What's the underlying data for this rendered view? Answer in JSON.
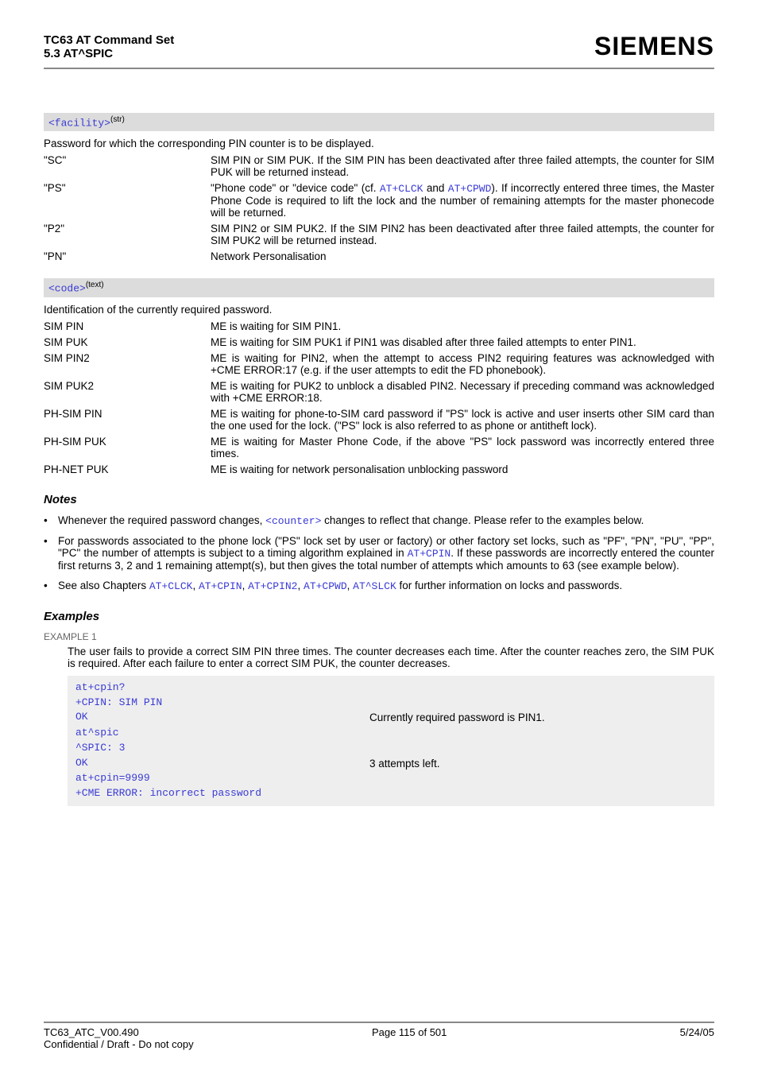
{
  "header": {
    "title": "TC63 AT Command Set",
    "section": "5.3 AT^SPIC",
    "logo": "SIEMENS"
  },
  "facility": {
    "param_name": "<facility>",
    "param_type": "(str)",
    "intro": "Password for which the corresponding PIN counter is to be displayed.",
    "rows": [
      {
        "term": "\"SC\"",
        "desc": "SIM PIN or SIM PUK. If the SIM PIN has been deactivated after three failed attempts, the counter for SIM PUK will be returned instead."
      },
      {
        "term": "\"PS\"",
        "desc_pre": "\"Phone code\" or \"device code\" (cf. ",
        "link1": "AT+CLCK",
        "mid": " and ",
        "link2": "AT+CPWD",
        "desc_post": "). If incorrectly entered three times, the Master Phone Code is required to lift the lock and the number of remaining attempts for the master phonecode will be returned."
      },
      {
        "term": "\"P2\"",
        "desc": "SIM PIN2 or SIM PUK2. If the SIM PIN2 has been deactivated after three failed attempts, the counter for SIM PUK2 will be returned instead."
      },
      {
        "term": "\"PN\"",
        "desc": "Network Personalisation"
      }
    ]
  },
  "code": {
    "param_name": "<code>",
    "param_type": "(text)",
    "intro": "Identification of the currently required password.",
    "rows": [
      {
        "term": "SIM PIN",
        "desc": "ME is waiting for SIM PIN1."
      },
      {
        "term": "SIM PUK",
        "desc": "ME is waiting for SIM PUK1 if PIN1 was disabled after three failed attempts to enter PIN1."
      },
      {
        "term": "SIM PIN2",
        "desc": "ME is waiting for PIN2, when the attempt to access PIN2 requiring features was acknowledged with +CME ERROR:17 (e.g. if the user attempts to edit the FD phonebook)."
      },
      {
        "term": "SIM PUK2",
        "desc": "ME is waiting for PUK2 to unblock a disabled PIN2. Necessary if preceding command was acknowledged with +CME ERROR:18."
      },
      {
        "term": "PH-SIM PIN",
        "desc": "ME is waiting for phone-to-SIM card password if \"PS\" lock is active and user inserts other SIM card than the one used for the lock. (\"PS\" lock is also referred to as phone or antitheft lock)."
      },
      {
        "term": "PH-SIM PUK",
        "desc": "ME is waiting for Master Phone Code, if the above \"PS\" lock password was incorrectly entered three times."
      },
      {
        "term": "PH-NET PUK",
        "desc": "ME is waiting for network personalisation unblocking password"
      }
    ]
  },
  "notes": {
    "title": "Notes",
    "items": {
      "n1_pre": "Whenever the required password changes, ",
      "n1_link": "<counter>",
      "n1_post": " changes to reflect that change. Please refer to the examples below.",
      "n2_pre": "For passwords associated to the phone lock (\"PS\" lock set by user or factory) or other factory set locks, such as \"PF\", \"PN\", \"PU\", \"PP\", \"PC\" the number of attempts is subject to a timing algorithm explained in ",
      "n2_link": "AT+CPIN",
      "n2_post": ". If these passwords are incorrectly entered the counter first returns 3, 2 and 1 remaining attempt(s), but then gives the total number of attempts which amounts to 63 (see example below).",
      "n3_pre": "See also Chapters ",
      "n3_l1": "AT+CLCK",
      "n3_s1": ", ",
      "n3_l2": "AT+CPIN",
      "n3_s2": ", ",
      "n3_l3": "AT+CPIN2",
      "n3_s3": ", ",
      "n3_l4": "AT+CPWD",
      "n3_s4": ", ",
      "n3_l5": "AT^SLCK",
      "n3_post": " for further information on locks and passwords."
    }
  },
  "examples": {
    "title": "Examples",
    "label": "EXAMPLE 1",
    "intro": "The user fails to provide a correct SIM PIN three times. The counter decreases each time. After the counter reaches zero, the SIM PUK is required. After each failure to enter a correct SIM PUK, the counter decreases.",
    "lines": [
      {
        "cmd": "at+cpin?",
        "comment": ""
      },
      {
        "cmd": "+CPIN: SIM PIN",
        "comment": ""
      },
      {
        "cmd": "OK",
        "comment": "Currently required password is PIN1."
      },
      {
        "cmd": "at^spic",
        "comment": ""
      },
      {
        "cmd": "^SPIC: 3",
        "comment": ""
      },
      {
        "cmd": "OK",
        "comment": "3 attempts left."
      },
      {
        "cmd": "at+cpin=9999",
        "comment": ""
      },
      {
        "cmd": "+CME ERROR: incorrect password",
        "comment": ""
      }
    ]
  },
  "footer": {
    "left": "TC63_ATC_V00.490",
    "center": "Page 115 of 501",
    "right": "5/24/05",
    "conf": "Confidential / Draft - Do not copy"
  }
}
